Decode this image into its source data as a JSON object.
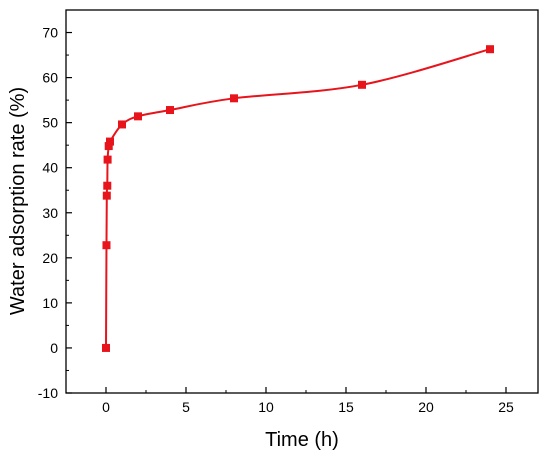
{
  "chart_data": {
    "type": "scatter",
    "title": "",
    "xlabel": "Time (h)",
    "ylabel": "Water adsorption rate (%)",
    "xlim": [
      -2.5,
      27
    ],
    "ylim": [
      -10,
      75
    ],
    "x_ticks": [
      0,
      5,
      10,
      15,
      20,
      25
    ],
    "y_ticks": [
      -10,
      0,
      10,
      20,
      30,
      40,
      50,
      60,
      70
    ],
    "x_tick_labels": [
      "0",
      "5",
      "10",
      "15",
      "20",
      "25"
    ],
    "y_tick_labels": [
      "-10",
      "0",
      "10",
      "20",
      "30",
      "40",
      "50",
      "60",
      "70"
    ],
    "grid": false,
    "series": [
      {
        "color": "#e8141c",
        "marker": "square",
        "line": "smooth",
        "x": [
          0,
          0.03,
          0.05,
          0.08,
          0.1,
          0.17,
          0.25,
          1,
          2,
          4,
          8,
          16,
          24
        ],
        "y": [
          0,
          22.8,
          33.8,
          36.0,
          41.8,
          44.8,
          45.8,
          49.6,
          51.4,
          52.8,
          55.4,
          58.4,
          66.3
        ]
      }
    ]
  }
}
